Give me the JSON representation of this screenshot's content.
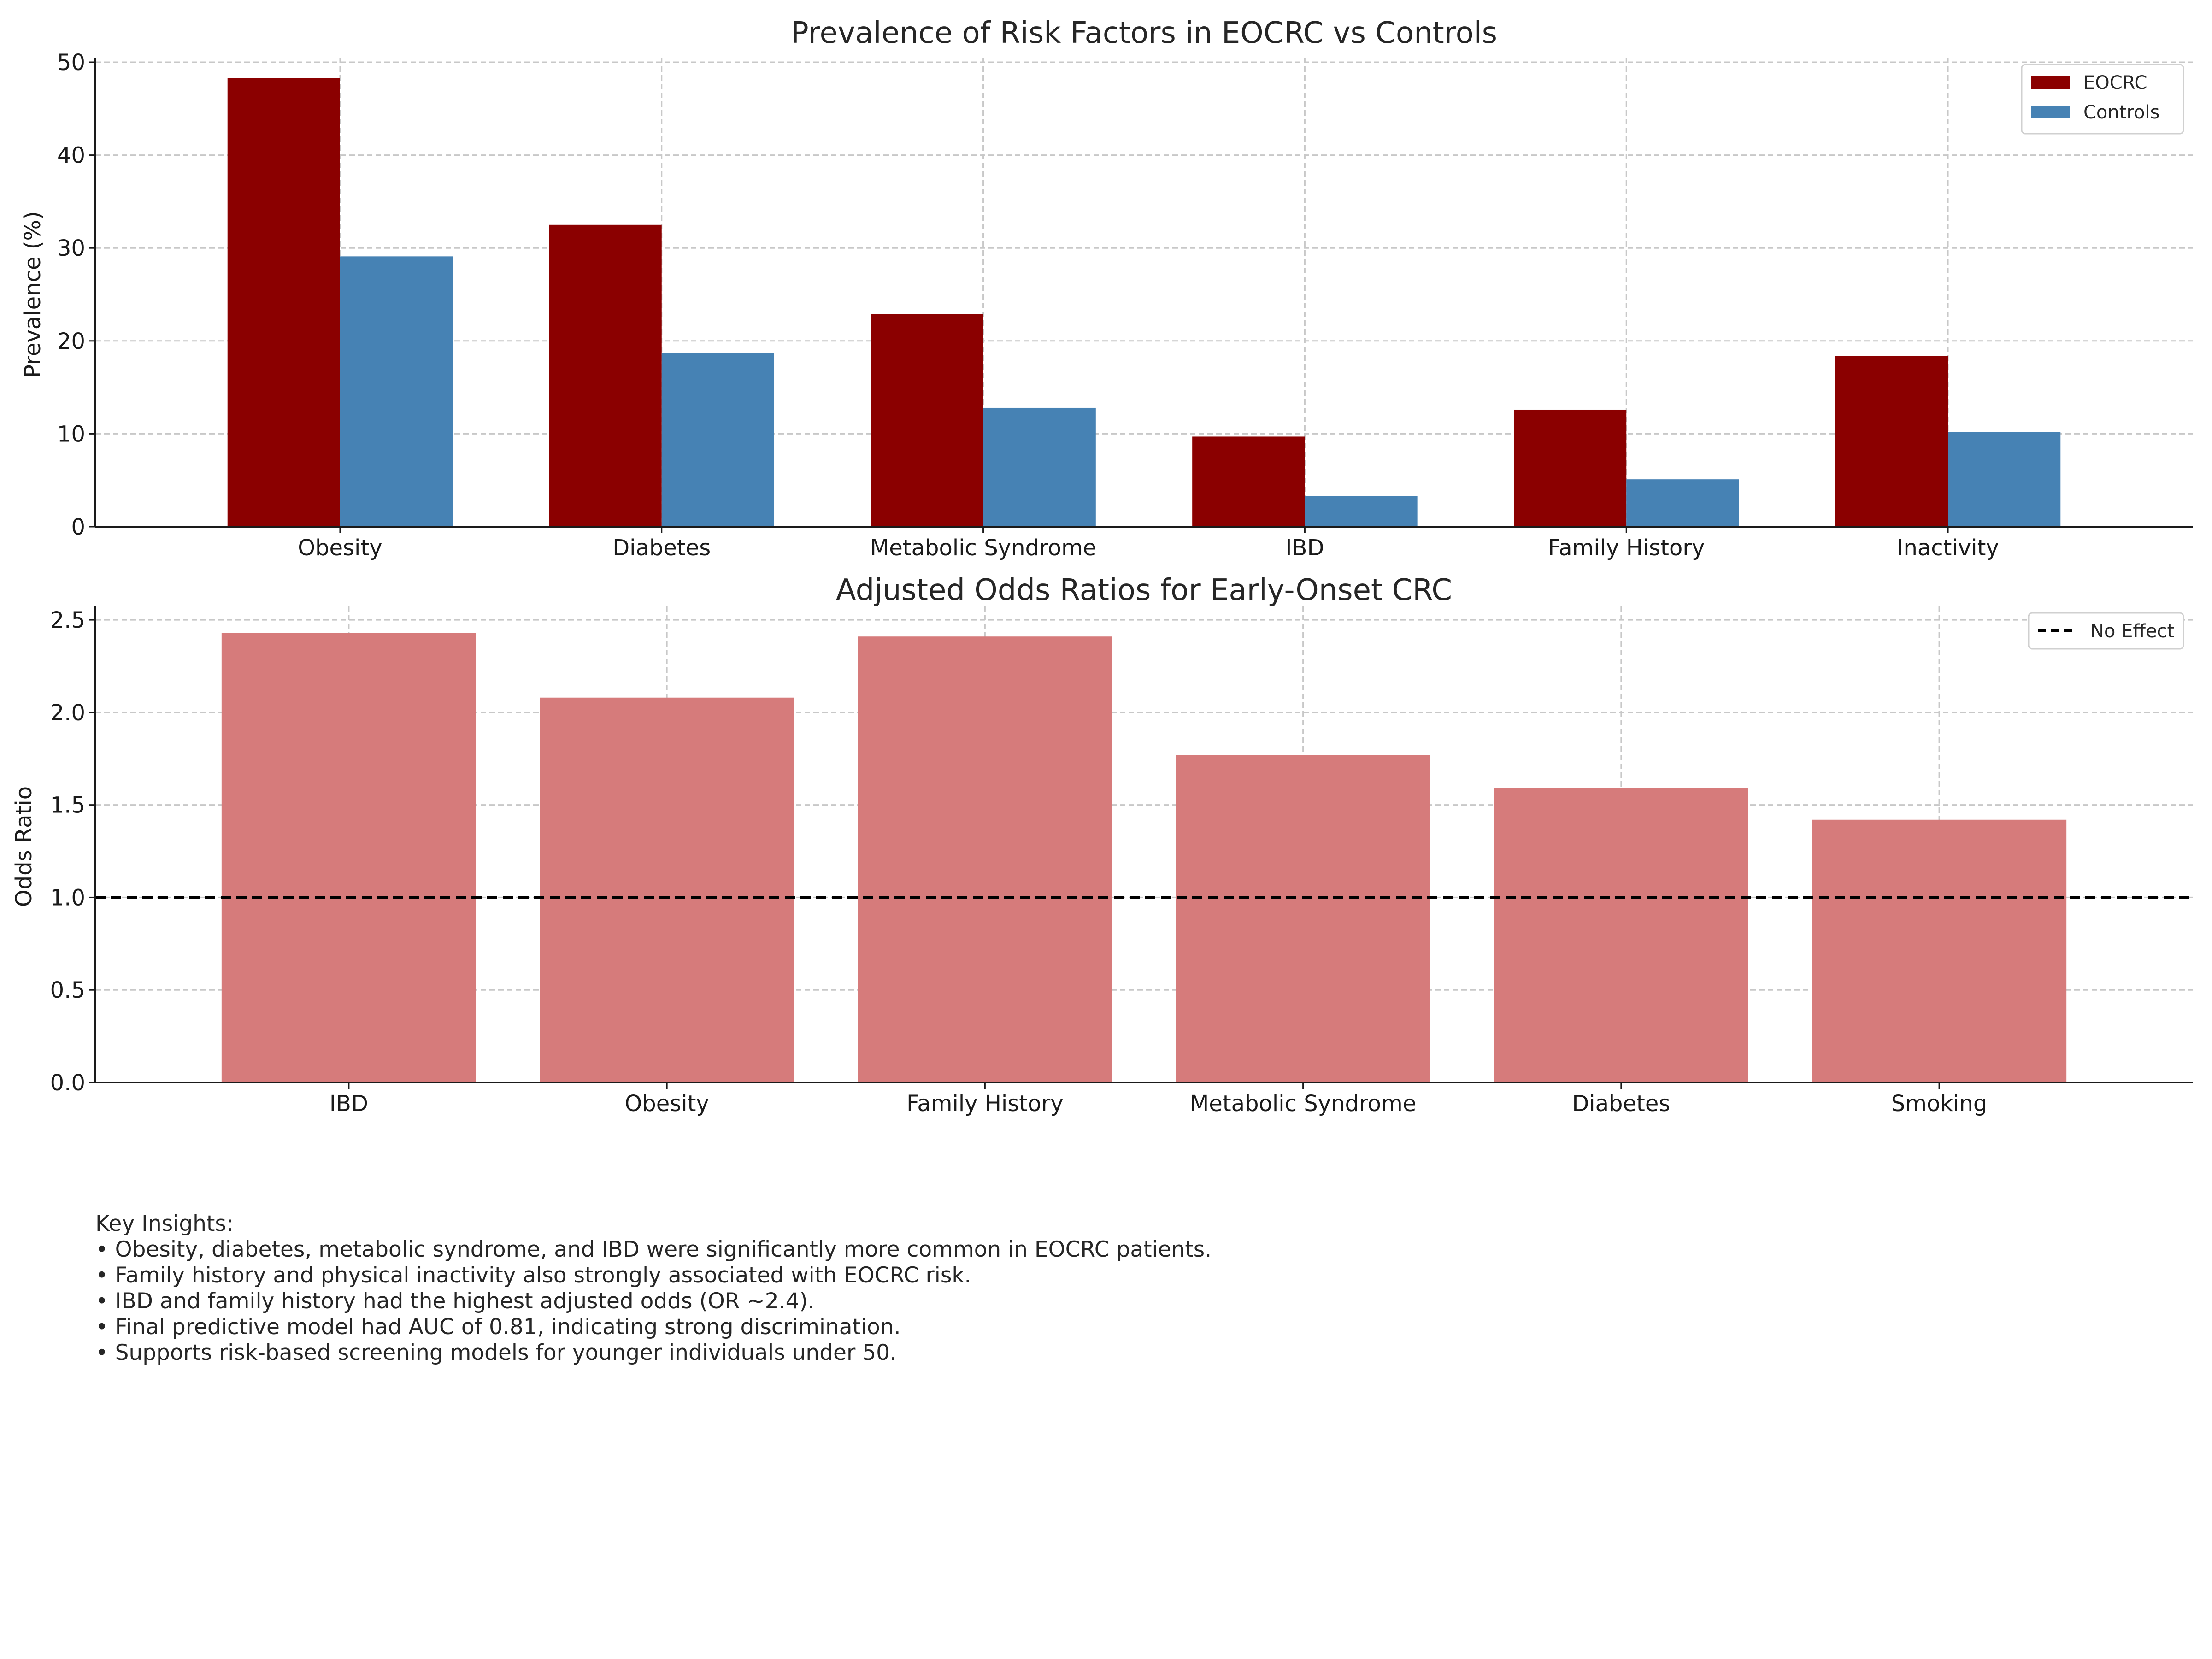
{
  "chart_data": [
    {
      "type": "bar",
      "title": "Prevalence of Risk Factors in EOCRC vs Controls",
      "xlabel": "",
      "ylabel": "Prevalence (%)",
      "ylim": [
        0,
        50
      ],
      "yticks": [
        0,
        10,
        20,
        30,
        40,
        50
      ],
      "ytick_labels": [
        "0",
        "10",
        "20",
        "30",
        "40",
        "50"
      ],
      "grid": true,
      "legend_position": "top-right",
      "categories": [
        "Obesity",
        "Diabetes",
        "Metabolic Syndrome",
        "IBD",
        "Family History",
        "Inactivity"
      ],
      "series": [
        {
          "name": "EOCRC",
          "color": "#8b0000",
          "values": [
            48.3,
            32.5,
            22.9,
            9.7,
            12.6,
            18.4
          ]
        },
        {
          "name": "Controls",
          "color": "#4682b4",
          "values": [
            29.1,
            18.7,
            12.8,
            3.3,
            5.1,
            10.2
          ]
        }
      ]
    },
    {
      "type": "bar",
      "title": "Adjusted Odds Ratios for Early-Onset CRC",
      "xlabel": "",
      "ylabel": "Odds Ratio",
      "ylim": [
        0,
        2.55
      ],
      "yticks": [
        0,
        0.5,
        1.0,
        1.5,
        2.0,
        2.5
      ],
      "ytick_labels": [
        "0.0",
        "0.5",
        "1.0",
        "1.5",
        "2.0",
        "2.5"
      ],
      "grid": true,
      "legend_position": "top-right",
      "categories": [
        "IBD",
        "Obesity",
        "Family History",
        "Metabolic Syndrome",
        "Diabetes",
        "Smoking"
      ],
      "series": [
        {
          "color": "#d67b7b",
          "values": [
            2.43,
            2.08,
            2.41,
            1.77,
            1.59,
            1.42
          ]
        }
      ],
      "reference_line": {
        "y": 1.0,
        "label": "No Effect",
        "style": "dashed",
        "color": "#000000"
      }
    }
  ],
  "insights": {
    "heading": "Key Insights:",
    "lines": [
      "• Obesity, diabetes, metabolic syndrome, and IBD were significantly more common in EOCRC patients.",
      "• Family history and physical inactivity also strongly associated with EOCRC risk.",
      "• IBD and family history had the highest adjusted odds (OR ~2.4).",
      "• Final predictive model had AUC of 0.81, indicating strong discrimination.",
      "• Supports risk-based screening models for younger individuals under 50."
    ]
  }
}
